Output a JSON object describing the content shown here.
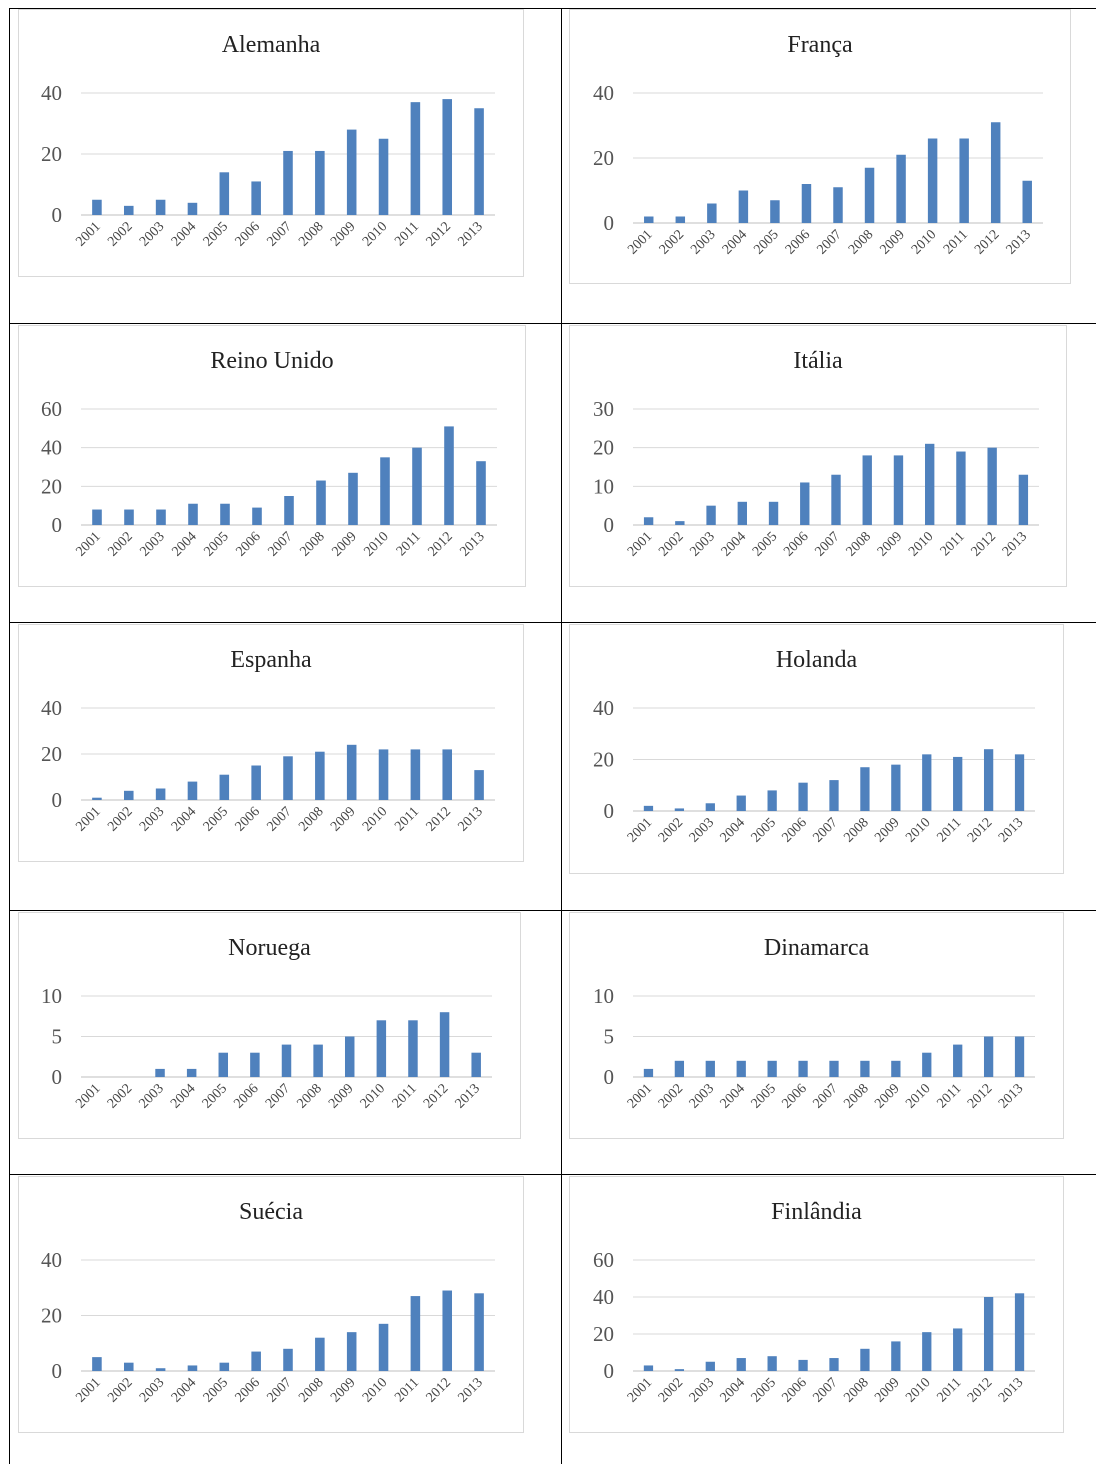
{
  "chart_data": [
    {
      "type": "bar",
      "title": "Alemanha",
      "categories": [
        "2001",
        "2002",
        "2003",
        "2004",
        "2005",
        "2006",
        "2007",
        "2008",
        "2009",
        "2010",
        "2011",
        "2012",
        "2013"
      ],
      "values": [
        5,
        3,
        5,
        4,
        14,
        11,
        21,
        21,
        28,
        25,
        37,
        38,
        35
      ],
      "ylim": [
        0,
        40
      ],
      "yticks": [
        0,
        20,
        40
      ],
      "grid": true,
      "color": "#4f81bd"
    },
    {
      "type": "bar",
      "title": "França",
      "categories": [
        "2001",
        "2002",
        "2003",
        "2004",
        "2005",
        "2006",
        "2007",
        "2008",
        "2009",
        "2010",
        "2011",
        "2012",
        "2013"
      ],
      "values": [
        2,
        2,
        6,
        10,
        7,
        12,
        11,
        17,
        21,
        26,
        26,
        31,
        13
      ],
      "ylim": [
        0,
        40
      ],
      "yticks": [
        0,
        20,
        40
      ],
      "grid": true,
      "color": "#4f81bd"
    },
    {
      "type": "bar",
      "title": "Reino Unido",
      "categories": [
        "2001",
        "2002",
        "2003",
        "2004",
        "2005",
        "2006",
        "2007",
        "2008",
        "2009",
        "2010",
        "2011",
        "2012",
        "2013"
      ],
      "values": [
        8,
        8,
        8,
        11,
        11,
        9,
        15,
        23,
        27,
        35,
        40,
        51,
        33
      ],
      "ylim": [
        0,
        60
      ],
      "yticks": [
        0,
        20,
        40,
        60
      ],
      "grid": true,
      "color": "#4f81bd"
    },
    {
      "type": "bar",
      "title": "Itália",
      "categories": [
        "2001",
        "2002",
        "2003",
        "2004",
        "2005",
        "2006",
        "2007",
        "2008",
        "2009",
        "2010",
        "2011",
        "2012",
        "2013"
      ],
      "values": [
        2,
        1,
        5,
        6,
        6,
        11,
        13,
        18,
        18,
        21,
        19,
        20,
        13
      ],
      "ylim": [
        0,
        30
      ],
      "yticks": [
        0,
        10,
        20,
        30
      ],
      "grid": true,
      "color": "#4f81bd"
    },
    {
      "type": "bar",
      "title": "Espanha",
      "categories": [
        "2001",
        "2002",
        "2003",
        "2004",
        "2005",
        "2006",
        "2007",
        "2008",
        "2009",
        "2010",
        "2011",
        "2012",
        "2013"
      ],
      "values": [
        1,
        4,
        5,
        8,
        11,
        15,
        19,
        21,
        24,
        22,
        22,
        22,
        13
      ],
      "ylim": [
        0,
        40
      ],
      "yticks": [
        0,
        20,
        40
      ],
      "grid": true,
      "color": "#4f81bd"
    },
    {
      "type": "bar",
      "title": "Holanda",
      "categories": [
        "2001",
        "2002",
        "2003",
        "2004",
        "2005",
        "2006",
        "2007",
        "2008",
        "2009",
        "2010",
        "2011",
        "2012",
        "2013"
      ],
      "values": [
        2,
        1,
        3,
        6,
        8,
        11,
        12,
        17,
        18,
        22,
        21,
        24,
        22
      ],
      "ylim": [
        0,
        40
      ],
      "yticks": [
        0,
        20,
        40
      ],
      "grid": true,
      "color": "#4f81bd"
    },
    {
      "type": "bar",
      "title": "Noruega",
      "categories": [
        "2001",
        "2002",
        "2003",
        "2004",
        "2005",
        "2006",
        "2007",
        "2008",
        "2009",
        "2010",
        "2011",
        "2012",
        "2013"
      ],
      "values": [
        0,
        0,
        1,
        1,
        3,
        3,
        4,
        4,
        5,
        7,
        7,
        8,
        3
      ],
      "ylim": [
        0,
        10
      ],
      "yticks": [
        0,
        5,
        10
      ],
      "grid": true,
      "color": "#4f81bd"
    },
    {
      "type": "bar",
      "title": "Dinamarca",
      "categories": [
        "2001",
        "2002",
        "2003",
        "2004",
        "2005",
        "2006",
        "2007",
        "2008",
        "2009",
        "2010",
        "2011",
        "2012",
        "2013"
      ],
      "values": [
        1,
        2,
        2,
        2,
        2,
        2,
        2,
        2,
        2,
        3,
        4,
        5,
        5
      ],
      "ylim": [
        0,
        10
      ],
      "yticks": [
        0,
        5,
        10
      ],
      "grid": true,
      "color": "#4f81bd"
    },
    {
      "type": "bar",
      "title": "Suécia",
      "categories": [
        "2001",
        "2002",
        "2003",
        "2004",
        "2005",
        "2006",
        "2007",
        "2008",
        "2009",
        "2010",
        "2011",
        "2012",
        "2013"
      ],
      "values": [
        5,
        3,
        1,
        2,
        3,
        7,
        8,
        12,
        14,
        17,
        27,
        29,
        28
      ],
      "ylim": [
        0,
        40
      ],
      "yticks": [
        0,
        20,
        40
      ],
      "grid": true,
      "color": "#4f81bd"
    },
    {
      "type": "bar",
      "title": "Finlândia",
      "categories": [
        "2001",
        "2002",
        "2003",
        "2004",
        "2005",
        "2006",
        "2007",
        "2008",
        "2009",
        "2010",
        "2011",
        "2012",
        "2013"
      ],
      "values": [
        3,
        1,
        5,
        7,
        8,
        6,
        7,
        12,
        16,
        21,
        23,
        40,
        42
      ],
      "ylim": [
        0,
        60
      ],
      "yticks": [
        0,
        20,
        40,
        60
      ],
      "grid": true,
      "color": "#4f81bd"
    }
  ]
}
